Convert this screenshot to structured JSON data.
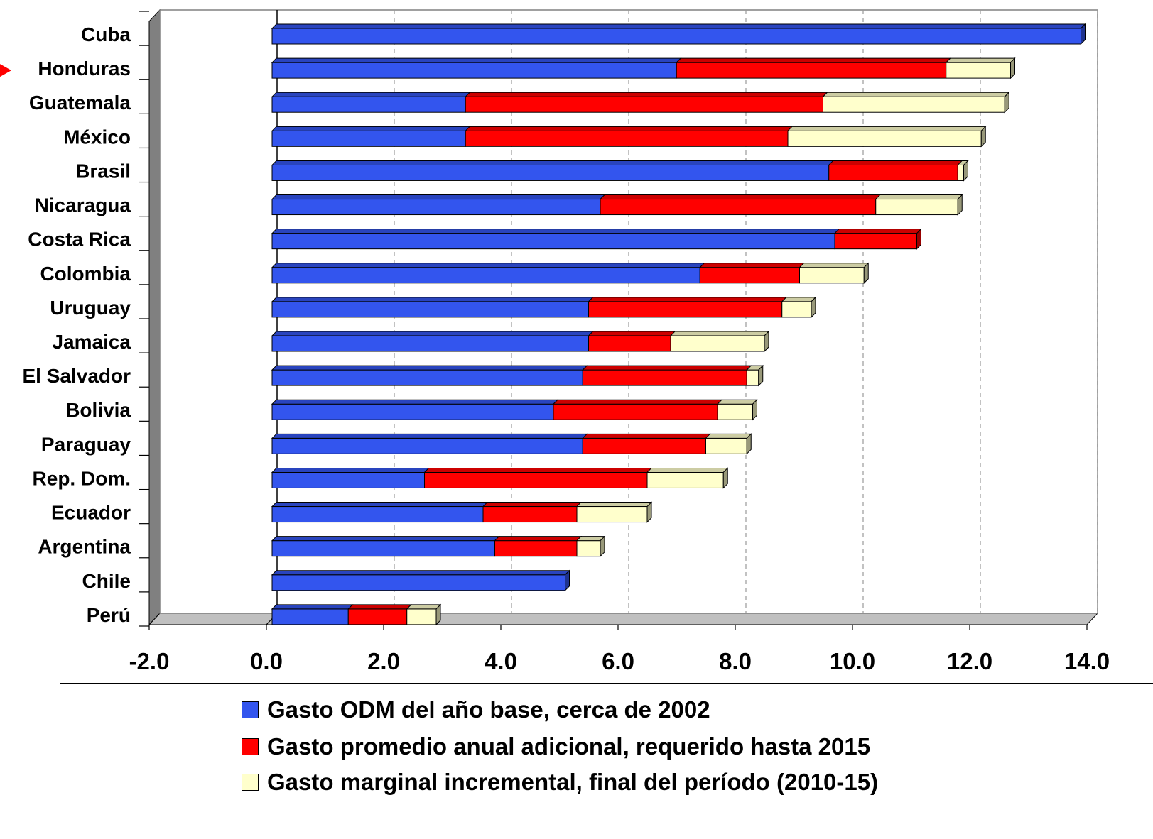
{
  "chart_data": {
    "type": "bar",
    "orientation": "horizontal",
    "stacked": true,
    "categories": [
      "Cuba",
      "Honduras",
      "Guatemala",
      "México",
      "Brasil",
      "Nicaragua",
      "Costa Rica",
      "Colombia",
      "Uruguay",
      "Jamaica",
      "El Salvador",
      "Bolivia",
      "Paraguay",
      "Rep. Dom.",
      "Ecuador",
      "Argentina",
      "Chile",
      "Perú"
    ],
    "highlighted_category": "Honduras",
    "series": [
      {
        "name": "Gasto ODM del año base, cerca de 2002",
        "color": "#3355ee",
        "values": [
          13.8,
          6.9,
          3.3,
          3.3,
          9.5,
          5.6,
          9.6,
          7.3,
          5.4,
          5.4,
          5.3,
          4.8,
          5.3,
          2.6,
          3.6,
          3.8,
          5.0,
          1.3
        ]
      },
      {
        "name": "Gasto promedio anual adicional, requerido hasta 2015",
        "color": "#ff0000",
        "values": [
          0.0,
          4.6,
          6.1,
          5.5,
          2.2,
          4.7,
          1.4,
          1.7,
          3.3,
          1.4,
          2.8,
          2.8,
          2.1,
          3.8,
          1.6,
          1.4,
          0.0,
          1.0
        ]
      },
      {
        "name": "Gasto marginal incremental, final del período (2010-15)",
        "color": "#ffffcc",
        "values": [
          0.0,
          1.1,
          3.1,
          3.3,
          0.1,
          1.4,
          0.0,
          1.1,
          0.5,
          1.6,
          0.2,
          0.6,
          0.7,
          1.3,
          1.2,
          0.4,
          0.0,
          0.5
        ]
      }
    ],
    "xlim": [
      -2.0,
      14.0
    ],
    "ticks": [
      "-2.0",
      "0.0",
      "2.0",
      "4.0",
      "6.0",
      "8.0",
      "10.0",
      "12.0",
      "14.0"
    ],
    "grid": true,
    "legend_position": "bottom"
  }
}
